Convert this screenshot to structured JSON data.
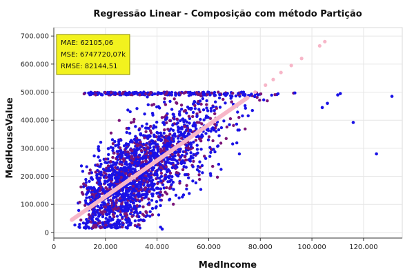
{
  "chart_data": {
    "type": "scatter",
    "title": "Regressão Linear - Composição com método Partição",
    "xlabel": "MedIncome",
    "ylabel": "MedHouseValue",
    "xlim": [
      0,
      135000
    ],
    "ylim": [
      -20000,
      730000
    ],
    "x_ticks": [
      0,
      20000,
      40000,
      60000,
      80000,
      100000,
      120000
    ],
    "x_tick_labels": [
      "0",
      "20.000",
      "40.000",
      "60.000",
      "80.000",
      "100.000",
      "120.000"
    ],
    "y_ticks": [
      0,
      100000,
      200000,
      300000,
      400000,
      500000,
      600000,
      700000
    ],
    "y_tick_labels": [
      "0",
      "100.000",
      "200.000",
      "300.000",
      "400.000",
      "500.000",
      "600.000",
      "700.000"
    ],
    "grid": true,
    "colors": {
      "series_a": "#1a12e6",
      "series_b": "#7a1478",
      "regression": "#f7b6c8",
      "metrics_box_fill": "#f2f21e",
      "metrics_box_border": "#8a8a00"
    },
    "metrics_box": {
      "placement": "top-left",
      "lines": [
        "MAE: 62105,06",
        "MSE: 6747720,07k",
        "RMSE: 82144,51"
      ]
    },
    "regression_line": {
      "solid": {
        "x": [
          7000,
          75000
        ],
        "y": [
          45000,
          480000
        ]
      },
      "dotted_points": [
        {
          "x": 78000,
          "y": 500000
        },
        {
          "x": 82000,
          "y": 525000
        },
        {
          "x": 85000,
          "y": 545000
        },
        {
          "x": 88000,
          "y": 570000
        },
        {
          "x": 92000,
          "y": 595000
        },
        {
          "x": 96000,
          "y": 620000
        },
        {
          "x": 103000,
          "y": 665000
        },
        {
          "x": 105000,
          "y": 680000
        }
      ]
    },
    "outliers": [
      {
        "x": 110000,
        "y": 490000
      },
      {
        "x": 111000,
        "y": 495000
      },
      {
        "x": 116000,
        "y": 392000
      },
      {
        "x": 125000,
        "y": 280000
      },
      {
        "x": 131000,
        "y": 485000
      },
      {
        "x": 42000,
        "y": 12000
      },
      {
        "x": 106000,
        "y": 460000
      },
      {
        "x": 104000,
        "y": 445000
      }
    ],
    "cloud": {
      "description_points": 2200,
      "x_range": [
        5000,
        100000
      ],
      "y_range": [
        15000,
        500000
      ]
    }
  }
}
